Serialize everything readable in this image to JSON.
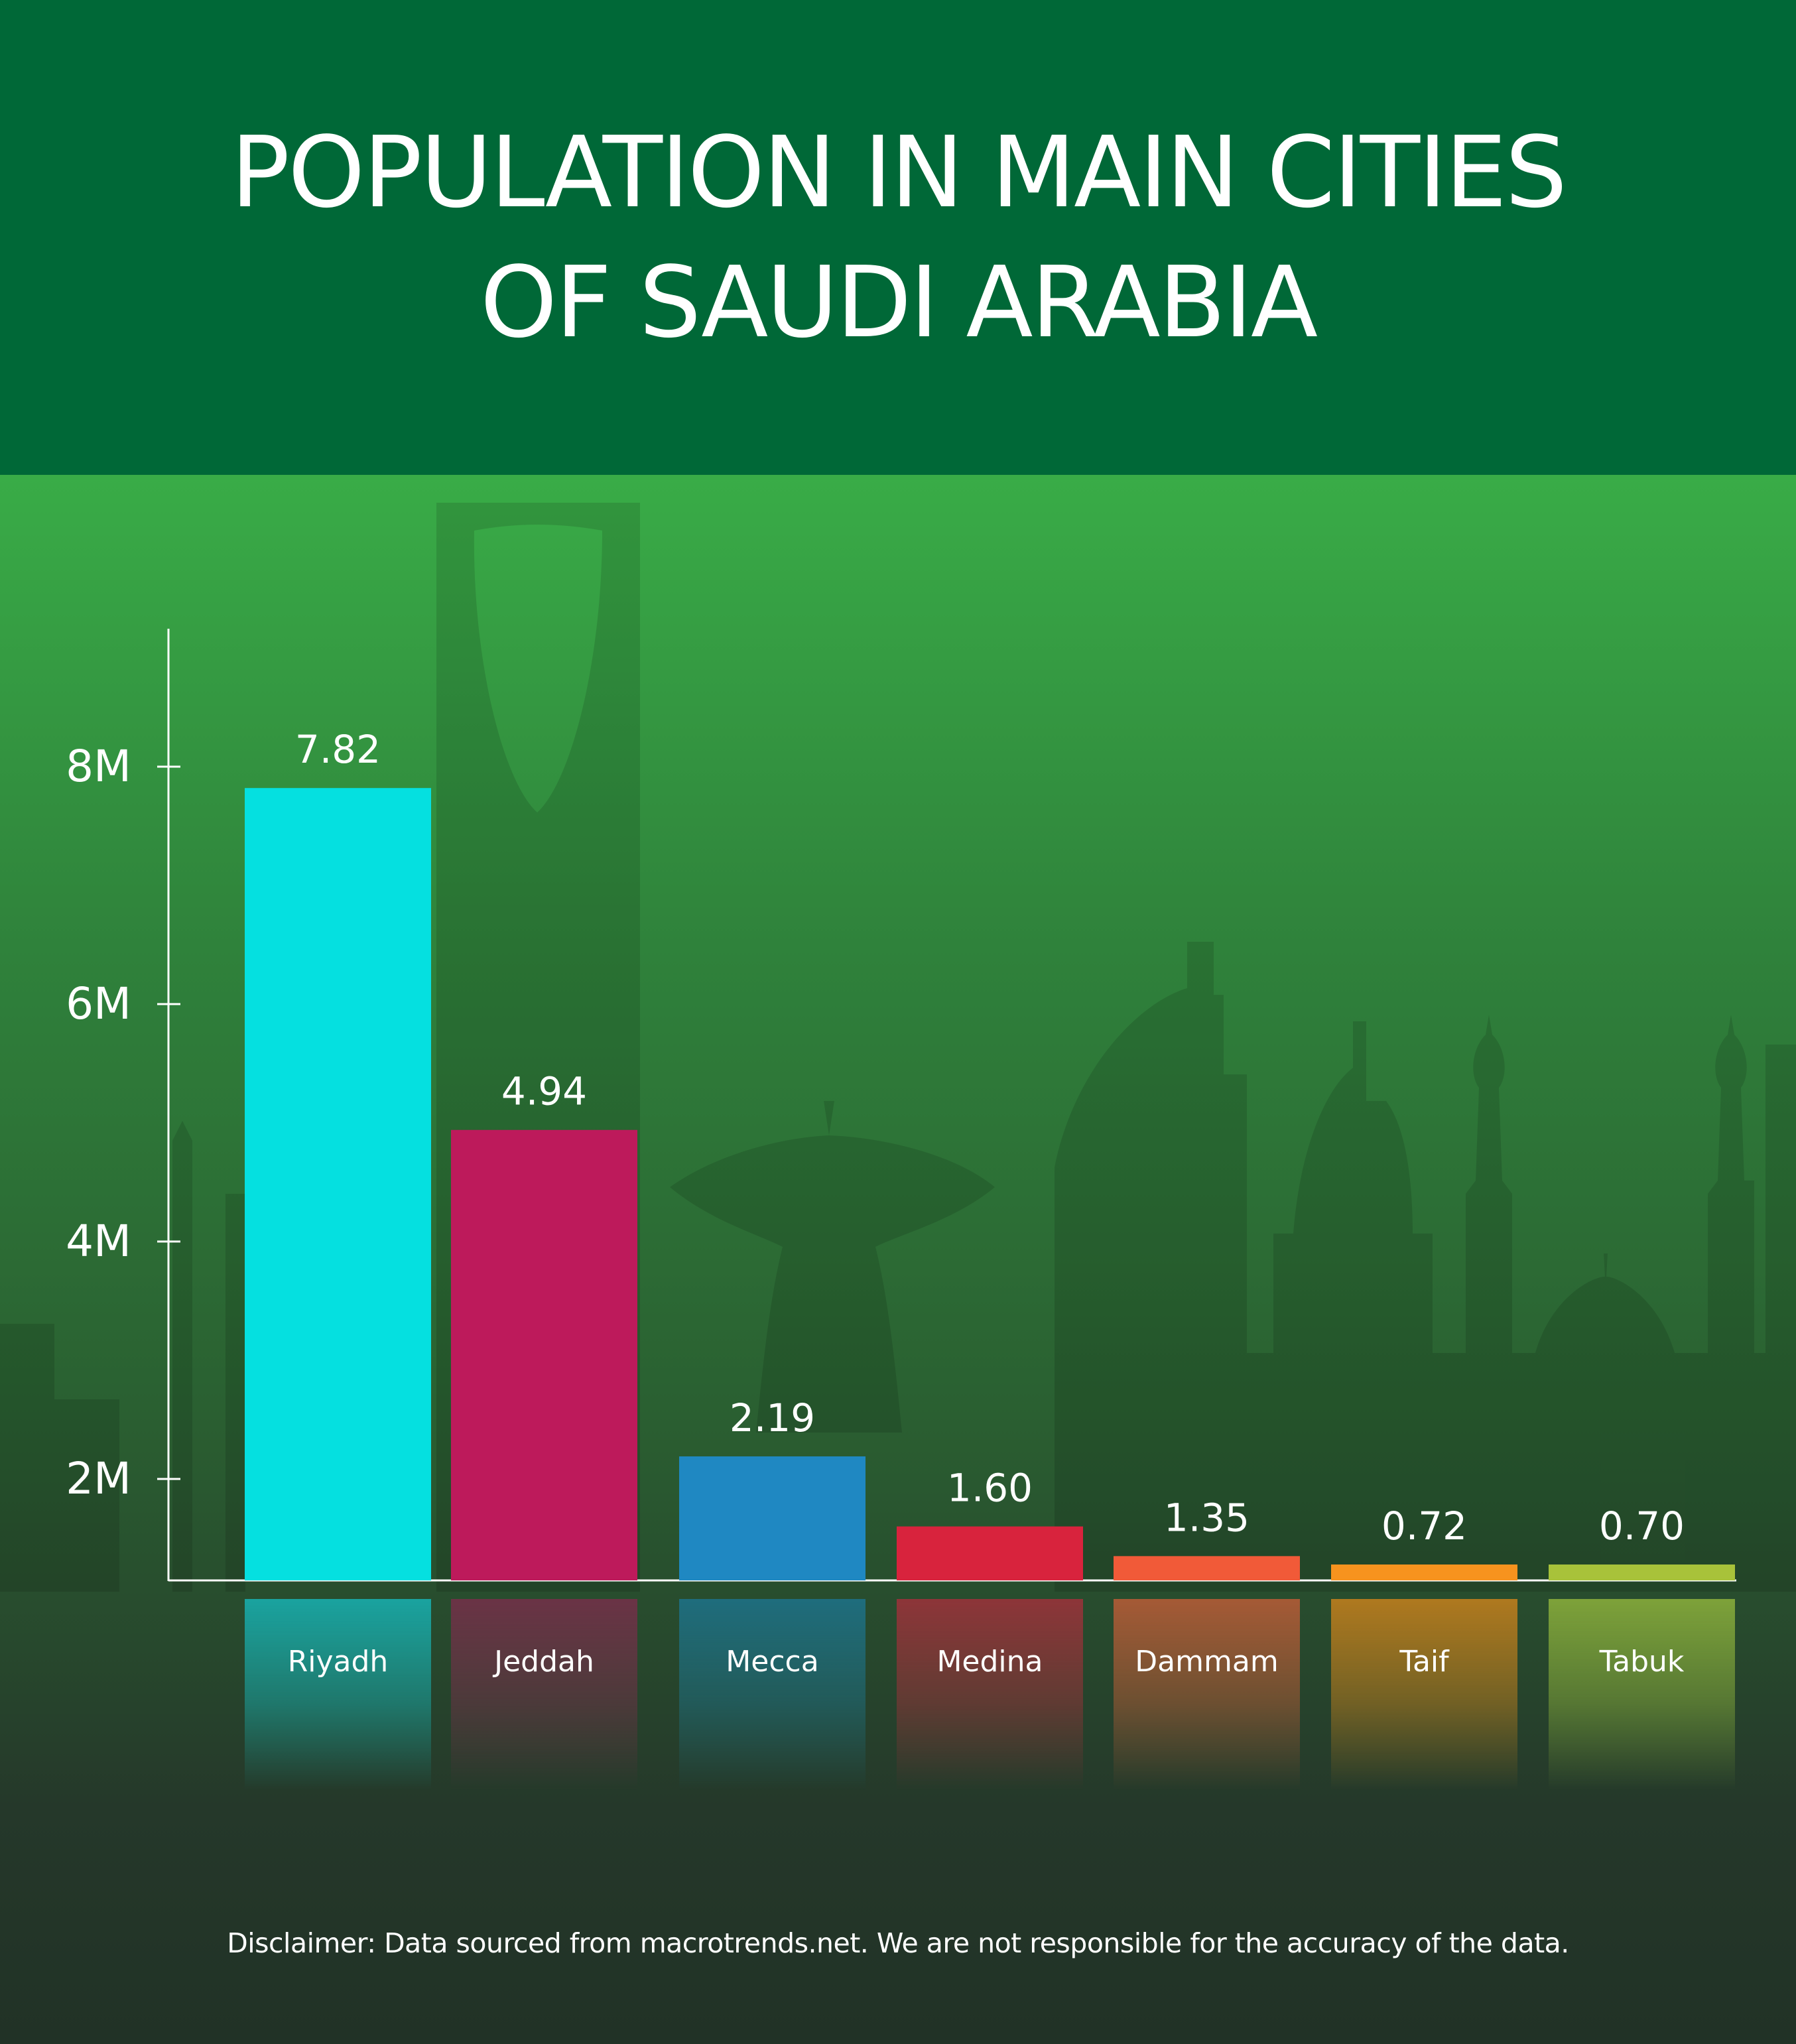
{
  "header": {
    "title_line1": "POPULATION IN MAIN CITIES",
    "title_line2": "OF SAUDI ARABIA"
  },
  "chart_data": {
    "type": "bar",
    "title": "POPULATION IN MAIN CITIES OF SAUDI ARABIA",
    "xlabel": "",
    "ylabel": "",
    "categories": [
      "Riyadh",
      "Jeddah",
      "Mecca",
      "Medina",
      "Dammam",
      "Taif",
      "Tabuk"
    ],
    "values": [
      7.82,
      4.94,
      2.19,
      1.6,
      1.35,
      0.72,
      0.7
    ],
    "value_labels": [
      "7.82",
      "4.94",
      "2.19",
      "1.60",
      "1.35",
      "0.72",
      "0.70"
    ],
    "colors": [
      "#05e0e0",
      "#bd1a5b",
      "#1f88c2",
      "#d8233d",
      "#f15a38",
      "#f7931e",
      "#a8c23a"
    ],
    "label_tab_colors": [
      "#1aa3a0",
      "#6b3346",
      "#1f6d7d",
      "#8e3539",
      "#a65a36",
      "#b0791f",
      "#7ea23a"
    ],
    "yticks": [
      2,
      4,
      6,
      8
    ],
    "ytick_labels": [
      "2M",
      "4M",
      "6M",
      "8M"
    ],
    "units": "millions",
    "grid": false,
    "legend": "none"
  },
  "footer": {
    "disclaimer": "Disclaimer: Data sourced from macrotrends.net. We are not responsible for the accuracy of the data."
  }
}
